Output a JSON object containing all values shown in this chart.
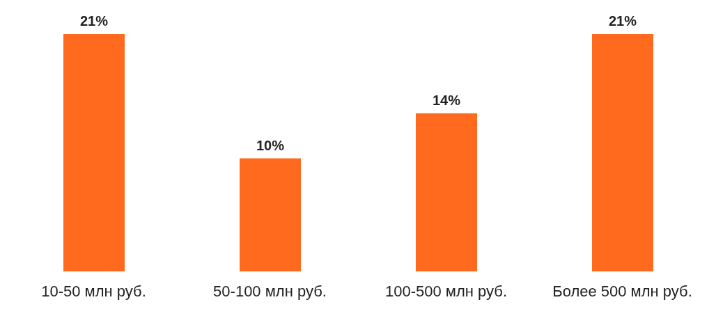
{
  "chart_data": {
    "type": "bar",
    "categories": [
      "10-50 млн руб.",
      "50-100 млн руб.",
      "100-500 млн руб.",
      "Более 500 млн руб."
    ],
    "values": [
      21,
      10,
      14,
      21
    ],
    "color": "#ff6a1f",
    "value_labels": [
      "21%",
      "10%",
      "14%",
      "21%"
    ]
  }
}
